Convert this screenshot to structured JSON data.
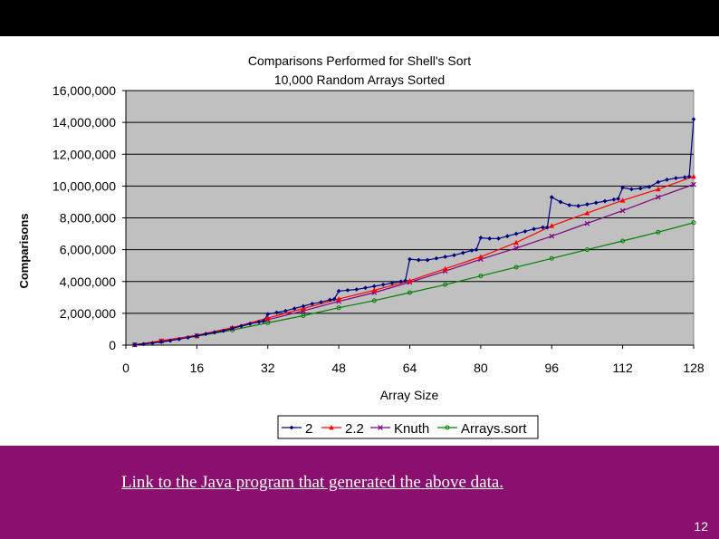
{
  "slide": {
    "link_text": "Link to the Java program that generated the above data.",
    "page_number": "12",
    "band_color": "#8a0f6e"
  },
  "chart_data": {
    "type": "line",
    "title": "Comparisons Performed for Shell's Sort",
    "subtitle": "10,000 Random Arrays Sorted",
    "xlabel": "Array Size",
    "ylabel": "Comparisons",
    "xlim": [
      0,
      128
    ],
    "ylim": [
      0,
      16000000
    ],
    "x_ticks": [
      0,
      16,
      32,
      48,
      64,
      80,
      96,
      112,
      128
    ],
    "y_ticks": [
      0,
      2000000,
      4000000,
      6000000,
      8000000,
      10000000,
      12000000,
      14000000,
      16000000
    ],
    "x_tick_labels": [
      "0",
      "16",
      "32",
      "48",
      "64",
      "80",
      "96",
      "112",
      "128"
    ],
    "y_tick_labels": [
      "0",
      "2,000,000",
      "4,000,000",
      "6,000,000",
      "8,000,000",
      "10,000,000",
      "12,000,000",
      "14,000,000",
      "16,000,000"
    ],
    "grid": true,
    "plot_background": "#c0c0c0",
    "legend_position": "bottom",
    "series": [
      {
        "name": "2",
        "color": "#000080",
        "marker": "diamond",
        "x": [
          2,
          4,
          6,
          8,
          10,
          12,
          14,
          16,
          18,
          20,
          22,
          24,
          26,
          28,
          30,
          31,
          32,
          34,
          36,
          38,
          40,
          42,
          44,
          46,
          47,
          48,
          50,
          52,
          54,
          56,
          58,
          60,
          62,
          63,
          64,
          66,
          68,
          70,
          72,
          74,
          76,
          78,
          79,
          80,
          82,
          84,
          86,
          88,
          90,
          92,
          94,
          95,
          96,
          98,
          100,
          102,
          104,
          106,
          108,
          110,
          111,
          112,
          114,
          116,
          118,
          120,
          122,
          124,
          126,
          127,
          128
        ],
        "y": [
          20000,
          70000,
          130000,
          200000,
          280000,
          380000,
          480000,
          600000,
          700000,
          800000,
          900000,
          1050000,
          1200000,
          1350000,
          1450000,
          1500000,
          1950000,
          2050000,
          2150000,
          2300000,
          2450000,
          2600000,
          2700000,
          2850000,
          2900000,
          3400000,
          3450000,
          3500000,
          3600000,
          3700000,
          3800000,
          3900000,
          4000000,
          4050000,
          5400000,
          5350000,
          5350000,
          5450000,
          5550000,
          5650000,
          5800000,
          5950000,
          6000000,
          6750000,
          6700000,
          6700000,
          6850000,
          7000000,
          7150000,
          7300000,
          7400000,
          7400000,
          9300000,
          9000000,
          8800000,
          8750000,
          8850000,
          8950000,
          9050000,
          9150000,
          9200000,
          9900000,
          9800000,
          9850000,
          9950000,
          10250000,
          10400000,
          10500000,
          10550000,
          10600000,
          14200000
        ]
      },
      {
        "name": "2.2",
        "color": "#ff0000",
        "marker": "triangle",
        "x": [
          2,
          8,
          16,
          24,
          32,
          40,
          48,
          56,
          64,
          72,
          80,
          88,
          96,
          104,
          112,
          120,
          128
        ],
        "y": [
          20000,
          280000,
          620000,
          1100000,
          1700000,
          2300000,
          2900000,
          3450000,
          4050000,
          4800000,
          5550000,
          6450000,
          7500000,
          8300000,
          9100000,
          9800000,
          10600000
        ]
      },
      {
        "name": "Knuth",
        "color": "#800080",
        "marker": "x",
        "x": [
          2,
          8,
          16,
          24,
          32,
          40,
          48,
          56,
          64,
          72,
          80,
          88,
          96,
          104,
          112,
          120,
          128
        ],
        "y": [
          20000,
          260000,
          580000,
          1050000,
          1600000,
          2150000,
          2750000,
          3300000,
          3950000,
          4650000,
          5400000,
          6100000,
          6850000,
          7650000,
          8450000,
          9300000,
          10100000
        ]
      },
      {
        "name": "Arrays.sort",
        "color": "#008000",
        "marker": "circle",
        "x": [
          2,
          8,
          16,
          24,
          32,
          40,
          48,
          56,
          64,
          72,
          80,
          88,
          96,
          104,
          112,
          120,
          128
        ],
        "y": [
          20000,
          250000,
          560000,
          950000,
          1400000,
          1850000,
          2350000,
          2800000,
          3300000,
          3800000,
          4350000,
          4900000,
          5450000,
          6000000,
          6550000,
          7100000,
          7700000
        ]
      }
    ]
  }
}
